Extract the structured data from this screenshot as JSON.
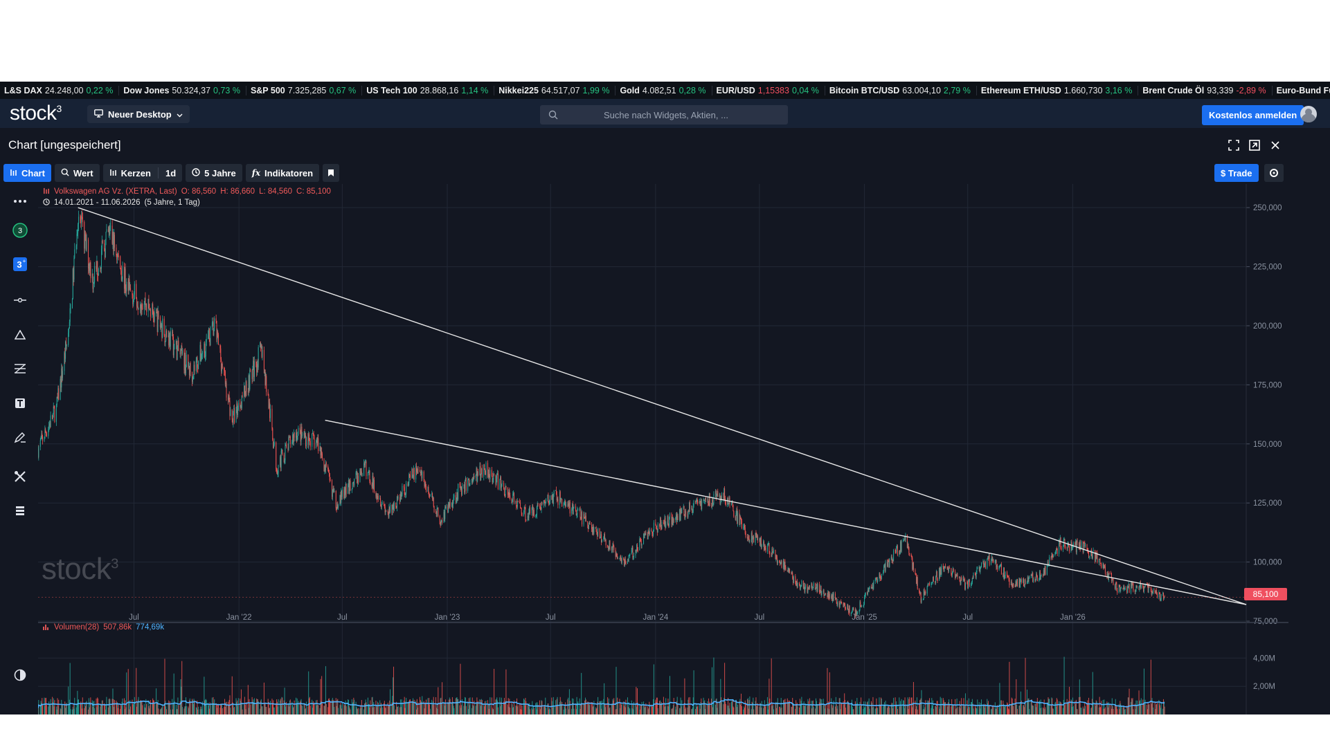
{
  "ticker": [
    {
      "name": "L&S DAX",
      "value": "24.248,00",
      "change": "0,22 %",
      "dir": "up"
    },
    {
      "name": "Dow Jones",
      "value": "50.324,37",
      "change": "0,73 %",
      "dir": "up"
    },
    {
      "name": "S&P 500",
      "value": "7.325,285",
      "change": "0,67 %",
      "dir": "up"
    },
    {
      "name": "US Tech 100",
      "value": "28.868,16",
      "change": "1,14 %",
      "dir": "up"
    },
    {
      "name": "Nikkei225",
      "value": "64.517,07",
      "change": "1,99 %",
      "dir": "up"
    },
    {
      "name": "Gold",
      "value": "4.082,51",
      "change": "0,28 %",
      "dir": "up"
    },
    {
      "name": "EUR/USD",
      "value": "1,15383",
      "change": "0,04 %",
      "dir": "up",
      "value_color": "#ef4f5f"
    },
    {
      "name": "Bitcoin BTC/USD",
      "value": "63.004,10",
      "change": "2,79 %",
      "dir": "up"
    },
    {
      "name": "Ethereum ETH/USD",
      "value": "1.660,730",
      "change": "3,16 %",
      "dir": "up"
    },
    {
      "name": "Brent Crude Öl",
      "value": "93,339",
      "change": "-2,89 %",
      "dir": "dn"
    },
    {
      "name": "Euro-Bund Future",
      "value": "",
      "change": "",
      "dir": "up"
    }
  ],
  "header": {
    "logo": "stock",
    "logo_sup": "3",
    "desktop_label": "Neuer Desktop",
    "search_placeholder": "Suche nach Widgets, Aktien, ...",
    "signup_label": "Kostenlos anmelden"
  },
  "widget": {
    "title": "Chart [ungespeichert]"
  },
  "toolbar": {
    "chart": "Chart",
    "wert": "Wert",
    "kerzen": "Kerzen",
    "interval": "1d",
    "range": "5 Jahre",
    "indikatoren": "Indikatoren",
    "trade": "$ Trade"
  },
  "legend": {
    "instrument": "Volkswagen AG Vz. (XETRA, Last)",
    "open": "O: 86,560",
    "high": "H: 86,660",
    "low": "L: 84,560",
    "close": "C: 85,100",
    "period": "14.01.2021 - 11.06.2026",
    "period_detail": "(5 Jahre, 1 Tag)",
    "volume_label": "Volumen(28)",
    "volume_value": "507,86k",
    "volume_ma": "774,69k"
  },
  "watermark": {
    "text": "stock",
    "sup": "3"
  },
  "price_tag": "85,100",
  "colors": {
    "up": "#26a69a",
    "down": "#ef5350",
    "bg": "#131722",
    "accent": "#1b6ff0",
    "volume_ma": "#4fb3ff"
  },
  "chart_data": {
    "type": "candlestick",
    "y_ticks": [
      "250,000",
      "225,000",
      "200,000",
      "175,000",
      "150,000",
      "125,000",
      "100,000",
      "75,000"
    ],
    "ylim": [
      75,
      260
    ],
    "x_ticks": [
      "Jul",
      "Jan '22",
      "Jul",
      "Jan '23",
      "Jul",
      "Jan '24",
      "Jul",
      "Jan '25",
      "Jul",
      "Jan '26"
    ],
    "x_tick_dates": [
      "2021-07-01",
      "2022-01-01",
      "2022-07-01",
      "2023-01-01",
      "2023-07-01",
      "2024-01-01",
      "2024-07-01",
      "2025-01-01",
      "2025-07-01",
      "2026-01-01"
    ],
    "xlim": [
      "2021-01-14",
      "2026-11-01"
    ],
    "last_date": "2026-06-11",
    "price_path": [
      [
        "2021-01-14",
        148
      ],
      [
        "2021-02-15",
        165
      ],
      [
        "2021-03-10",
        200
      ],
      [
        "2021-03-25",
        248
      ],
      [
        "2021-04-20",
        220
      ],
      [
        "2021-05-20",
        240
      ],
      [
        "2021-06-20",
        215
      ],
      [
        "2021-07-20",
        210
      ],
      [
        "2021-09-01",
        195
      ],
      [
        "2021-10-10",
        180
      ],
      [
        "2021-11-20",
        200
      ],
      [
        "2021-12-20",
        160
      ],
      [
        "2022-02-10",
        190
      ],
      [
        "2022-03-08",
        140
      ],
      [
        "2022-04-10",
        155
      ],
      [
        "2022-05-20",
        150
      ],
      [
        "2022-06-20",
        125
      ],
      [
        "2022-08-10",
        140
      ],
      [
        "2022-09-20",
        120
      ],
      [
        "2022-11-10",
        140
      ],
      [
        "2022-12-20",
        118
      ],
      [
        "2023-01-20",
        130
      ],
      [
        "2023-03-10",
        140
      ],
      [
        "2023-05-20",
        120
      ],
      [
        "2023-07-10",
        128
      ],
      [
        "2023-08-20",
        120
      ],
      [
        "2023-09-30",
        110
      ],
      [
        "2023-11-10",
        100
      ],
      [
        "2023-12-20",
        113
      ],
      [
        "2024-02-10",
        120
      ],
      [
        "2024-03-20",
        125
      ],
      [
        "2024-04-30",
        128
      ],
      [
        "2024-06-10",
        112
      ],
      [
        "2024-07-20",
        105
      ],
      [
        "2024-09-10",
        90
      ],
      [
        "2024-10-20",
        88
      ],
      [
        "2024-12-15",
        78
      ],
      [
        "2025-01-30",
        95
      ],
      [
        "2025-03-15",
        110
      ],
      [
        "2025-04-10",
        85
      ],
      [
        "2025-05-20",
        98
      ],
      [
        "2025-06-30",
        90
      ],
      [
        "2025-08-10",
        102
      ],
      [
        "2025-09-20",
        90
      ],
      [
        "2025-11-10",
        95
      ],
      [
        "2025-12-10",
        108
      ],
      [
        "2026-01-20",
        106
      ],
      [
        "2026-02-20",
        100
      ],
      [
        "2026-03-20",
        88
      ],
      [
        "2026-04-30",
        90
      ],
      [
        "2026-06-11",
        85.1
      ]
    ],
    "trendlines": [
      {
        "from": [
          "2021-03-25",
          250
        ],
        "to": [
          "2026-11-01",
          82
        ]
      },
      {
        "from": [
          "2022-06-01",
          160
        ],
        "to": [
          "2026-11-01",
          82
        ]
      }
    ],
    "volume": {
      "y_ticks": [
        "4,00M",
        "2,00M"
      ],
      "ylim": [
        0,
        5.0
      ],
      "avg_millions": 0.78
    }
  }
}
